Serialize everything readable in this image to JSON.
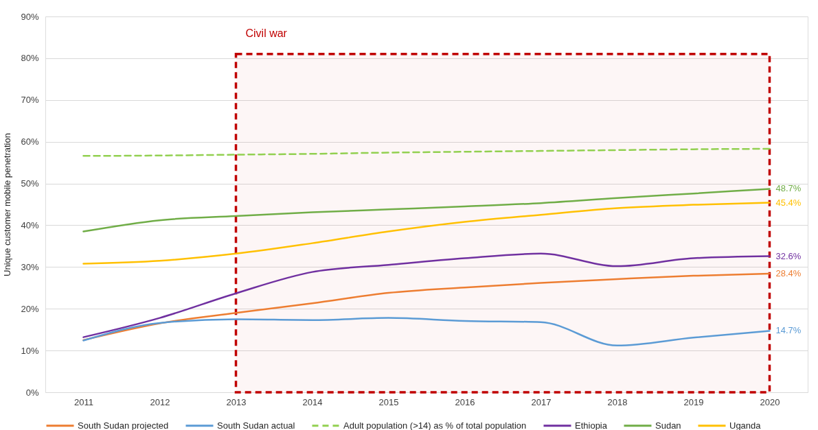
{
  "chart_data": {
    "type": "line",
    "ylabel": "Unique customer mobile penetration",
    "categories": [
      "2011",
      "2012",
      "2013",
      "2014",
      "2015",
      "2016",
      "2017",
      "2018",
      "2019",
      "2020"
    ],
    "series": [
      {
        "name": "South Sudan projected",
        "color": "#ed7d31",
        "values": [
          12.5,
          16.5,
          19.0,
          21.3,
          23.8,
          25.1,
          26.2,
          27.1,
          27.9,
          28.4
        ],
        "value_labels": [
          null,
          null,
          null,
          null,
          null,
          null,
          null,
          null,
          null,
          "28.4%"
        ]
      },
      {
        "name": "South Sudan actual",
        "color": "#5b9bd5",
        "values": [
          12.4,
          16.6,
          17.5,
          17.3,
          17.8,
          17.1,
          16.8,
          11.2,
          13.1,
          14.7
        ],
        "value_labels": [
          null,
          null,
          null,
          null,
          null,
          null,
          null,
          null,
          null,
          "14.7%"
        ]
      },
      {
        "name": "Adult population (>14) as % of total population",
        "color": "#92d050",
        "line_style": "dashed",
        "values": [
          56.6,
          56.7,
          56.9,
          57.1,
          57.4,
          57.6,
          57.8,
          58.0,
          58.2,
          58.3
        ]
      },
      {
        "name": "Ethiopia",
        "color": "#7030a0",
        "values": [
          13.2,
          17.8,
          23.7,
          28.8,
          30.5,
          32.1,
          33.2,
          30.2,
          32.1,
          32.6
        ],
        "value_labels": [
          null,
          null,
          null,
          null,
          null,
          null,
          null,
          null,
          null,
          "32.6%"
        ]
      },
      {
        "name": "Sudan",
        "color": "#70ad47",
        "values": [
          38.5,
          41.2,
          42.2,
          43.1,
          43.8,
          44.5,
          45.3,
          46.5,
          47.6,
          48.7
        ],
        "value_labels": [
          null,
          null,
          null,
          null,
          null,
          null,
          null,
          null,
          null,
          "48.7%"
        ]
      },
      {
        "name": "Uganda",
        "color": "#ffc000",
        "values": [
          30.8,
          31.5,
          33.2,
          35.7,
          38.5,
          40.8,
          42.5,
          44.1,
          44.9,
          45.4
        ],
        "value_labels": [
          null,
          null,
          null,
          null,
          null,
          null,
          null,
          null,
          null,
          "45.4%"
        ]
      }
    ],
    "ylim": [
      0,
      90
    ],
    "yticks": [
      {
        "value": 0,
        "label": "0%"
      },
      {
        "value": 10,
        "label": "10%"
      },
      {
        "value": 20,
        "label": "20%"
      },
      {
        "value": 30,
        "label": "30%"
      },
      {
        "value": 40,
        "label": "40%"
      },
      {
        "value": 50,
        "label": "50%"
      },
      {
        "value": 60,
        "label": "60%"
      },
      {
        "value": 70,
        "label": "70%"
      },
      {
        "value": 80,
        "label": "80%"
      },
      {
        "value": 90,
        "label": "90%"
      }
    ],
    "bands": [
      {
        "axis": "x",
        "from": "2013",
        "to": "2020",
        "label": "Civil war",
        "color": "#c00000"
      }
    ],
    "grid": "y",
    "legend": "bottom",
    "line_style": "solid"
  }
}
